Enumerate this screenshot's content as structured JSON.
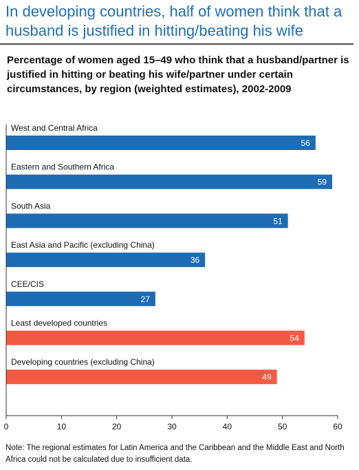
{
  "headline": "In developing countries, half of women think that a husband is justified in hitting/beating his wife",
  "subtitle": "Percentage of women aged 15–49 who think that a husband/partner is justified in hitting or beating his wife/partner under certain circumstances, by region (weighted estimates), 2002-2009",
  "note": "Note: The regional estimates for Latin America and the Caribbean and the Middle East and North Africa could not be calculated due to insufficient data.",
  "colors": {
    "region": "#1e6cb3",
    "aggregate": "#f25a43",
    "headline": "#1f6fb5"
  },
  "chart_data": {
    "type": "bar",
    "orientation": "horizontal",
    "title": "",
    "xlabel": "",
    "ylabel": "",
    "xlim": [
      0,
      60
    ],
    "xticks": [
      0,
      10,
      20,
      30,
      40,
      50,
      60
    ],
    "grid": false,
    "legend": "none",
    "categories": [
      "West and Central Africa",
      "Eastern and Southern Africa",
      "South Asia",
      "East Asia and Pacific (excluding China)",
      "CEE/CIS",
      "Least developed countries",
      "Developing countries (excluding China)"
    ],
    "values": [
      56,
      59,
      51,
      36,
      27,
      54,
      49
    ],
    "groups": [
      "region",
      "region",
      "region",
      "region",
      "region",
      "aggregate",
      "aggregate"
    ],
    "data_labels": [
      "56",
      "59",
      "51",
      "36",
      "27",
      "54",
      "49"
    ]
  }
}
